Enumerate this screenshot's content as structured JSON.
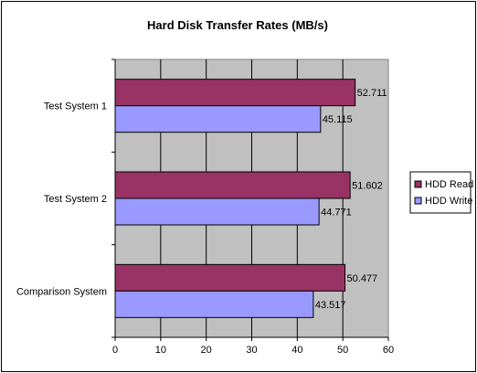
{
  "chart_data": {
    "type": "bar",
    "orientation": "horizontal",
    "title": "Hard Disk Transfer Rates (MB/s)",
    "categories": [
      "Test System 1",
      "Test System 2",
      "Comparison System"
    ],
    "series": [
      {
        "name": "HDD Read",
        "values": [
          52.711,
          51.602,
          50.477
        ],
        "color": "#993366"
      },
      {
        "name": "HDD Write",
        "values": [
          45.115,
          44.771,
          43.517
        ],
        "color": "#9999ff"
      }
    ],
    "xticks": [
      0,
      10,
      20,
      30,
      40,
      50,
      60
    ],
    "xlim": [
      0,
      60
    ],
    "grid": true,
    "plot_background": "#c0c0c0",
    "legend_position": "right",
    "data_labels": [
      "52.711",
      "45.115",
      "51.602",
      "44.771",
      "50.477",
      "43.517"
    ]
  }
}
